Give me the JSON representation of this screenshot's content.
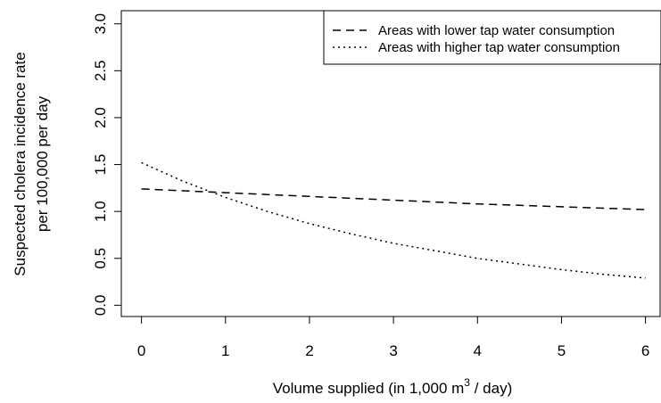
{
  "chart_data": {
    "type": "line",
    "x_label": [
      "Volume supplied (in 1,000 m",
      "3",
      " / day)"
    ],
    "y_label": [
      "Suspected cholera incidence rate",
      "per 100,000 per day"
    ],
    "x": [
      0,
      0.5,
      1,
      1.5,
      2,
      2.5,
      3,
      3.5,
      4,
      4.5,
      5,
      5.5,
      6
    ],
    "series": [
      {
        "name": "Areas with lower tap water consumption",
        "color": "#000000",
        "dash": "dashed",
        "values": [
          1.24,
          1.22,
          1.2,
          1.18,
          1.16,
          1.14,
          1.12,
          1.1,
          1.08,
          1.065,
          1.05,
          1.035,
          1.02
        ]
      },
      {
        "name": "Areas with higher tap water consumption",
        "color": "#000000",
        "dash": "dotted",
        "values": [
          1.52,
          1.32,
          1.15,
          1.0,
          0.87,
          0.76,
          0.66,
          0.58,
          0.5,
          0.44,
          0.38,
          0.33,
          0.29
        ]
      }
    ],
    "xlim": [
      -0.24,
      6.24
    ],
    "xticks": [
      0,
      1,
      2,
      3,
      4,
      5,
      6
    ],
    "ylim": [
      -0.12,
      3.14
    ],
    "yticks": [
      {
        "value": 0,
        "label": "0.0"
      },
      {
        "value": 0.5,
        "label": "0.5"
      },
      {
        "value": 1,
        "label": "1.0"
      },
      {
        "value": 1.5,
        "label": "1.5"
      },
      {
        "value": 2,
        "label": "2.0"
      },
      {
        "value": 2.5,
        "label": "2.5"
      },
      {
        "value": 3,
        "label": "3.0"
      }
    ],
    "grid": false,
    "legend": "top-right"
  }
}
